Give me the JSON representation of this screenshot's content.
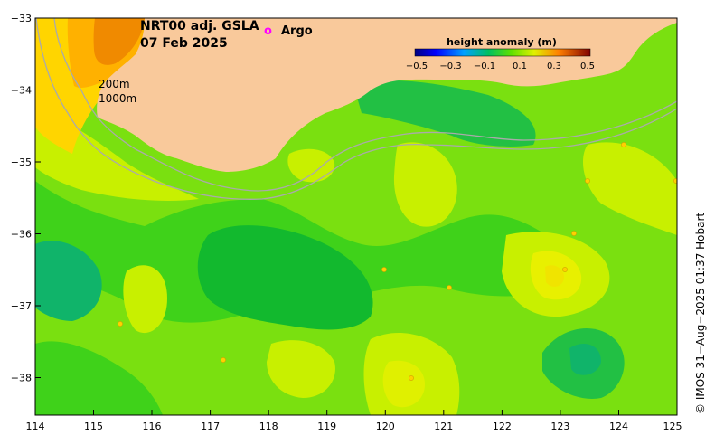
{
  "title": {
    "product": "NRT00 adj. GSLA",
    "date": "07 Feb 2025"
  },
  "legend": {
    "argo_marker": "o",
    "argo_label": "Argo",
    "colorbar_title": "height anomaly (m)",
    "colorbar_ticks": [
      "−0.5",
      "−0.3",
      "−0.1",
      "0.1",
      "0.3",
      "0.5"
    ]
  },
  "contour_labels": {
    "shelf_200": "200m",
    "shelf_1000": "1000m"
  },
  "axes": {
    "y_ticks": [
      "−33",
      "−34",
      "−35",
      "−36",
      "−37",
      "−38"
    ],
    "x_ticks": [
      "114",
      "115",
      "116",
      "117",
      "118",
      "119",
      "120",
      "121",
      "122",
      "123",
      "124",
      "125"
    ]
  },
  "credit": "© IMOS 31−Aug−2025 01:37 Hobart",
  "colors": {
    "land": "#f9c99b",
    "argo": "#ff00ff",
    "bathymetry_line": "#aaaaaa"
  }
}
